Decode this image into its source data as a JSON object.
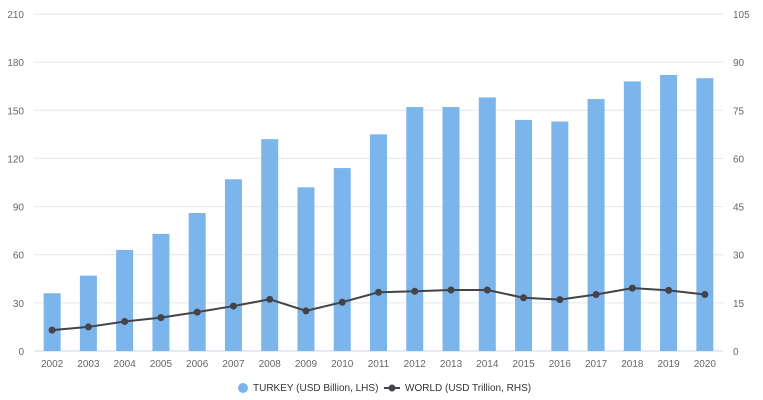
{
  "chart_data": {
    "type": "bar+line",
    "categories": [
      "2002",
      "2003",
      "2004",
      "2005",
      "2006",
      "2007",
      "2008",
      "2009",
      "2010",
      "2011",
      "2012",
      "2013",
      "2014",
      "2015",
      "2016",
      "2017",
      "2018",
      "2019",
      "2020"
    ],
    "series": [
      {
        "name": "TURKEY (USD Billion, LHS)",
        "type": "bar",
        "axis": "left",
        "color": "#7cb5ec",
        "values": [
          36,
          47,
          63,
          73,
          86,
          107,
          132,
          102,
          114,
          135,
          152,
          152,
          158,
          144,
          143,
          157,
          168,
          172,
          170
        ]
      },
      {
        "name": "WORLD (USD Trillion, RHS)",
        "type": "line",
        "axis": "right",
        "color": "#434348",
        "values": [
          6.5,
          7.5,
          9.2,
          10.4,
          12.1,
          14.0,
          16.1,
          12.5,
          15.2,
          18.3,
          18.6,
          19.0,
          19.0,
          16.6,
          16.0,
          17.6,
          19.6,
          18.9,
          17.6
        ]
      }
    ],
    "y_left": {
      "min": 0,
      "max": 210,
      "ticks": [
        "0",
        "30",
        "60",
        "90",
        "120",
        "150",
        "180",
        "210"
      ]
    },
    "y_right": {
      "min": 0,
      "max": 105,
      "ticks": [
        "0",
        "15",
        "30",
        "45",
        "60",
        "75",
        "90",
        "105"
      ]
    },
    "grid": true,
    "legend": "bottom-center",
    "title": "",
    "xlabel": "",
    "ylabel": ""
  }
}
